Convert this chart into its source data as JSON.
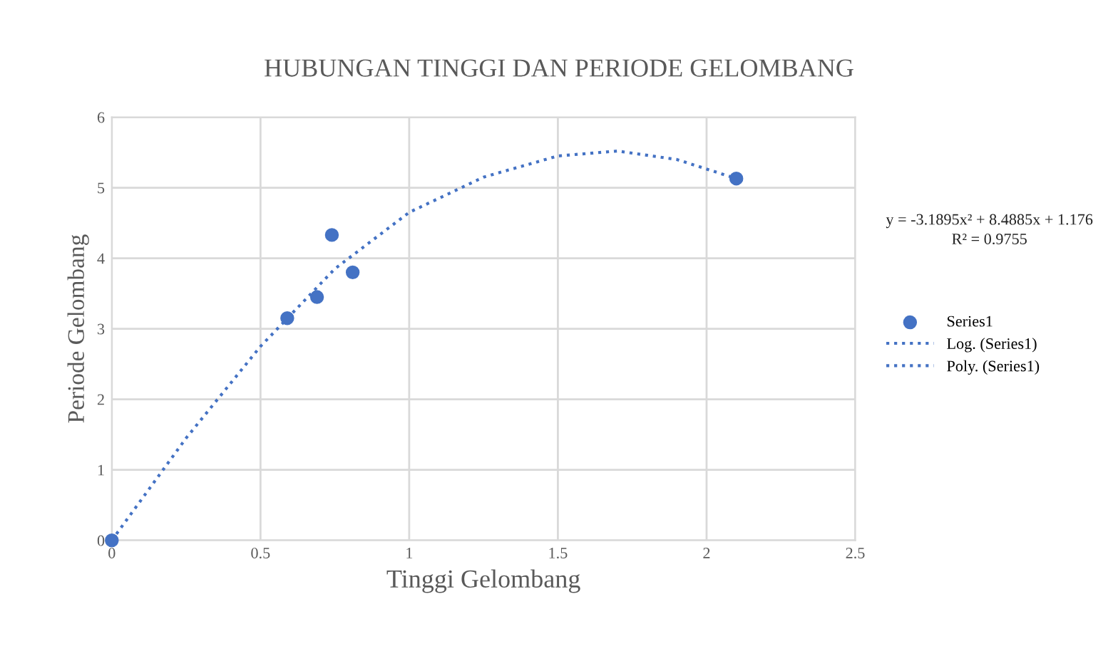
{
  "chart_data": {
    "type": "scatter",
    "title": "HUBUNGAN TINGGI DAN PERIODE GELOMBANG",
    "xlabel": "Tinggi Gelombang",
    "ylabel": "Periode Gelombang",
    "xlim": [
      0,
      2.5
    ],
    "xticks": [
      0,
      0.5,
      1,
      1.5,
      2,
      2.5
    ],
    "ylim": [
      0,
      6
    ],
    "yticks": [
      0,
      1,
      2,
      3,
      4,
      5,
      6
    ],
    "grid": true,
    "legend": "right",
    "annotations": [
      "y = -3.1895x² + 8.4885x + 1.176",
      "R² = 0.9755"
    ],
    "series": [
      {
        "name": "Series1",
        "color": "#4472c4",
        "marker": "circle",
        "x": [
          0,
          0.59,
          0.69,
          0.74,
          0.81,
          2.1
        ],
        "values": [
          0,
          3.15,
          3.45,
          4.33,
          3.8,
          5.13
        ]
      },
      {
        "name": "Log. (Series1)",
        "type": "line",
        "color": "#4472c4",
        "line_style": "dotted",
        "marker": "none"
      },
      {
        "name": "Poly. (Series1)",
        "type": "line",
        "color": "#4472c4",
        "line_style": "dotted",
        "marker": "none",
        "x": [
          0,
          0.25,
          0.5,
          0.75,
          1.0,
          1.25,
          1.5,
          1.7,
          1.9,
          2.1
        ],
        "values": [
          0,
          1.45,
          2.75,
          3.85,
          4.65,
          5.15,
          5.45,
          5.52,
          5.4,
          5.13
        ]
      }
    ]
  }
}
